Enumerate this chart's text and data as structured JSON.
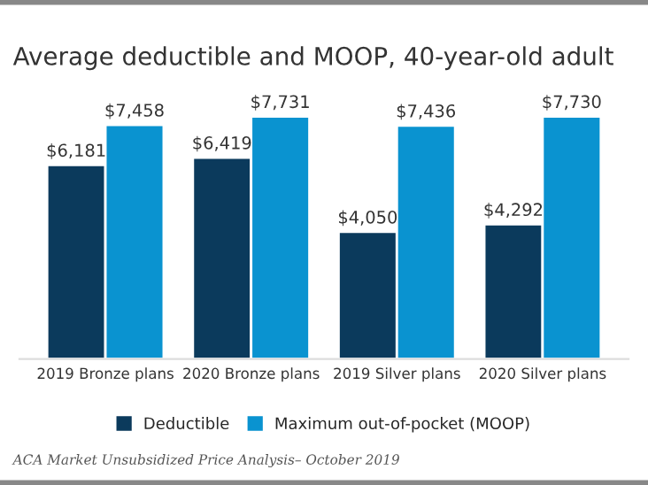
{
  "chart_data": {
    "type": "bar",
    "title": "Average deductible and MOOP, 40-year-old adult",
    "categories": [
      "2019 Bronze plans",
      "2020 Bronze plans",
      "2019 Silver plans",
      "2020 Silver plans"
    ],
    "series": [
      {
        "name": "Deductible",
        "color": "#0b3a5c",
        "values": [
          6181,
          6419,
          4050,
          4292
        ],
        "value_labels": [
          "$6,181",
          "$6,419",
          "$4,050",
          "$4,292"
        ]
      },
      {
        "name": "Maximum out-of-pocket (MOOP)",
        "color": "#0a93d0",
        "values": [
          7458,
          7731,
          7436,
          7730
        ],
        "value_labels": [
          "$7,458",
          "$7,731",
          "$7,436",
          "$7,730"
        ]
      }
    ],
    "legend": "bottom",
    "annotations": [
      "ACA Market Unsubsidized Price Analysis– October 2019"
    ]
  }
}
